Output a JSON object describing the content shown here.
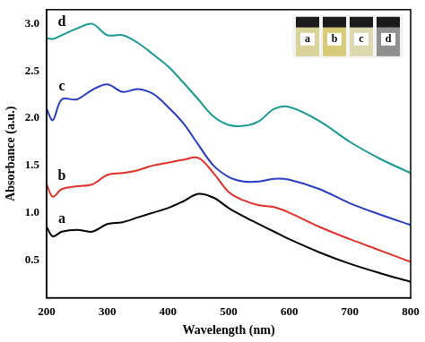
{
  "chart_data": {
    "type": "line",
    "x_label": "Wavelength (nm)",
    "y_label": "Absorbance (a.u.)",
    "x": [
      200,
      210,
      225,
      250,
      275,
      300,
      325,
      350,
      375,
      400,
      425,
      450,
      475,
      500,
      525,
      550,
      575,
      600,
      650,
      700,
      750,
      800
    ],
    "series": [
      {
        "name": "a",
        "color": "#000000",
        "values": [
          0.85,
          0.75,
          0.8,
          0.82,
          0.8,
          0.88,
          0.9,
          0.95,
          1.0,
          1.05,
          1.12,
          1.2,
          1.16,
          1.05,
          0.96,
          0.88,
          0.8,
          0.72,
          0.58,
          0.46,
          0.36,
          0.27
        ]
      },
      {
        "name": "b",
        "color": "#e0302a",
        "values": [
          1.3,
          1.17,
          1.25,
          1.28,
          1.3,
          1.4,
          1.42,
          1.45,
          1.5,
          1.53,
          1.56,
          1.58,
          1.42,
          1.22,
          1.13,
          1.08,
          1.06,
          1.0,
          0.85,
          0.72,
          0.6,
          0.48
        ]
      },
      {
        "name": "c",
        "color": "#2a3cbf",
        "values": [
          2.1,
          1.98,
          2.2,
          2.2,
          2.3,
          2.36,
          2.28,
          2.31,
          2.26,
          2.12,
          1.95,
          1.72,
          1.5,
          1.38,
          1.33,
          1.33,
          1.36,
          1.35,
          1.25,
          1.1,
          0.98,
          0.87
        ]
      },
      {
        "name": "d",
        "color": "#1a9a90",
        "values": [
          2.85,
          2.84,
          2.88,
          2.95,
          3.0,
          2.88,
          2.88,
          2.8,
          2.68,
          2.55,
          2.38,
          2.2,
          2.02,
          1.93,
          1.92,
          1.97,
          2.1,
          2.12,
          1.97,
          1.75,
          1.57,
          1.42
        ]
      }
    ],
    "xlim": [
      200,
      800
    ],
    "xticks": [
      200,
      300,
      400,
      500,
      600,
      700,
      800
    ],
    "ylim": [
      0.1,
      3.15
    ],
    "yticks": [
      0.5,
      {
        "value": 1,
        "label": "1.0"
      },
      1.5,
      {
        "value": 2,
        "label": "2.0"
      },
      2.5,
      {
        "value": 3,
        "label": "3.0"
      }
    ],
    "grid": false
  }
}
